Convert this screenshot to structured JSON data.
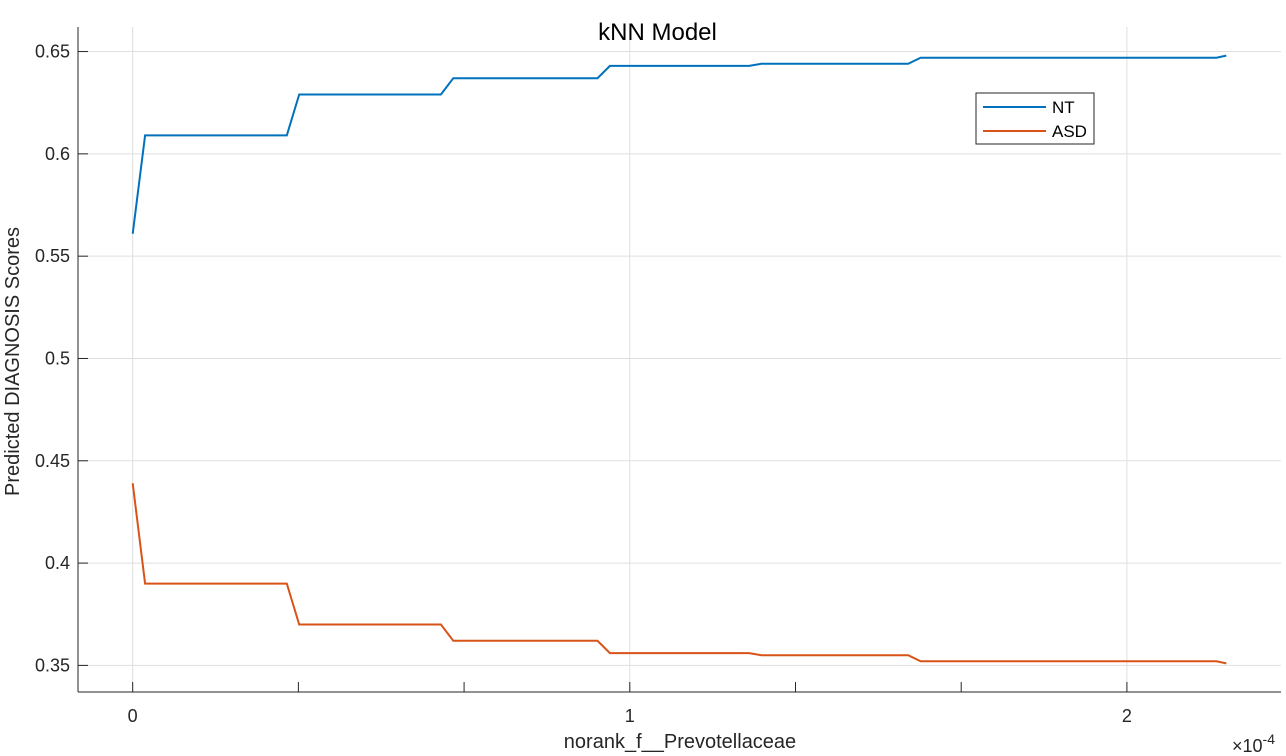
{
  "chart_data": {
    "type": "line",
    "title": "kNN Model",
    "xlabel": "norank_f__Prevotellaceae",
    "ylabel": "Predicted DIAGNOSIS Scores",
    "x_exponent_base": "×10",
    "x_exponent_power": "-4",
    "xlim": [
      -0.11,
      2.31
    ],
    "ylim": [
      0.337,
      0.662
    ],
    "x_ticks": [
      0,
      1,
      2
    ],
    "x_tick_labels": [
      "0",
      "1",
      "2"
    ],
    "y_ticks": [
      0.35,
      0.4,
      0.45,
      0.5,
      0.55,
      0.6,
      0.65
    ],
    "y_tick_labels": [
      "0.35",
      "0.4",
      "0.45",
      "0.5",
      "0.55",
      "0.6",
      "0.65"
    ],
    "grid": true,
    "legend_position": "top-right",
    "series": [
      {
        "name": "NT",
        "color": "#0072BD",
        "x": [
          0,
          0.025,
          0.31,
          0.335,
          0.62,
          0.645,
          0.935,
          0.96,
          1.24,
          1.265,
          1.56,
          1.585,
          1.9,
          2.18,
          2.2
        ],
        "y": [
          0.561,
          0.609,
          0.609,
          0.629,
          0.629,
          0.637,
          0.637,
          0.643,
          0.643,
          0.644,
          0.644,
          0.647,
          0.647,
          0.647,
          0.648
        ]
      },
      {
        "name": "ASD",
        "color": "#D95319",
        "x": [
          0,
          0.025,
          0.31,
          0.335,
          0.62,
          0.645,
          0.935,
          0.96,
          1.24,
          1.265,
          1.56,
          1.585,
          1.9,
          2.18,
          2.2
        ],
        "y": [
          0.439,
          0.39,
          0.39,
          0.37,
          0.37,
          0.362,
          0.362,
          0.356,
          0.356,
          0.355,
          0.355,
          0.352,
          0.352,
          0.352,
          0.351
        ]
      }
    ]
  }
}
